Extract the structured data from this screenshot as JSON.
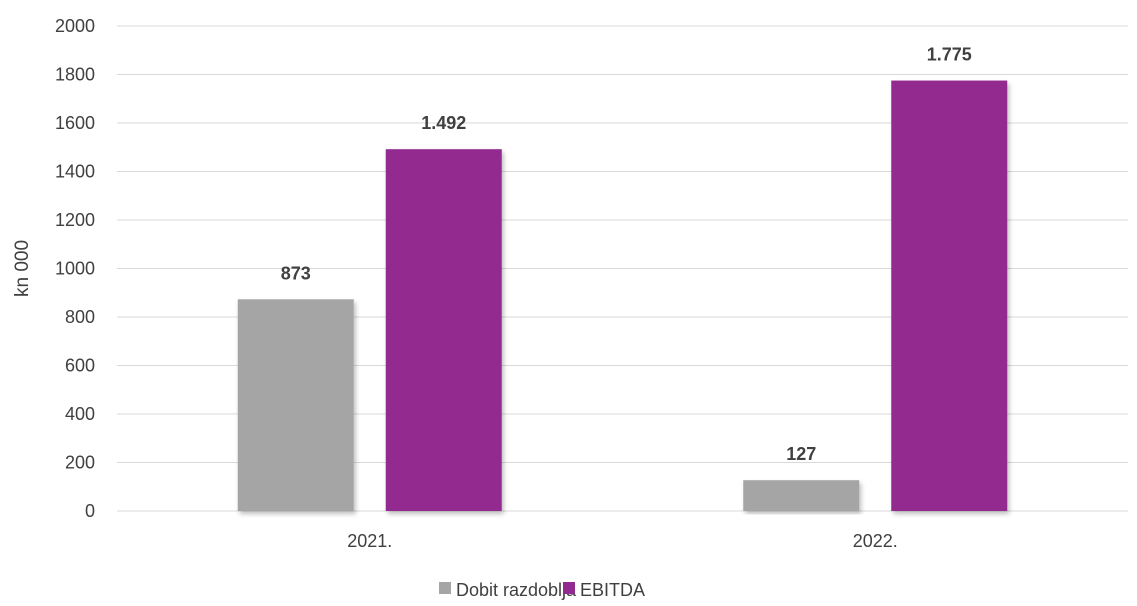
{
  "chart_data": {
    "type": "bar",
    "categories": [
      "2021.",
      "2022."
    ],
    "series": [
      {
        "name": "Dobit razdoblja",
        "values": [
          873,
          127
        ],
        "labels": [
          "873",
          "127"
        ],
        "color": "#a5a5a5"
      },
      {
        "name": "EBITDA",
        "values": [
          1492,
          1775
        ],
        "labels": [
          "1.492",
          "1.775"
        ],
        "color": "#922b8f"
      }
    ],
    "ylabel": "kn 000",
    "ylim": [
      0,
      2000
    ],
    "yticks": [
      0,
      200,
      400,
      600,
      800,
      1000,
      1200,
      1400,
      1600,
      1800,
      2000
    ],
    "grid": true,
    "legend": "bottom-center"
  }
}
